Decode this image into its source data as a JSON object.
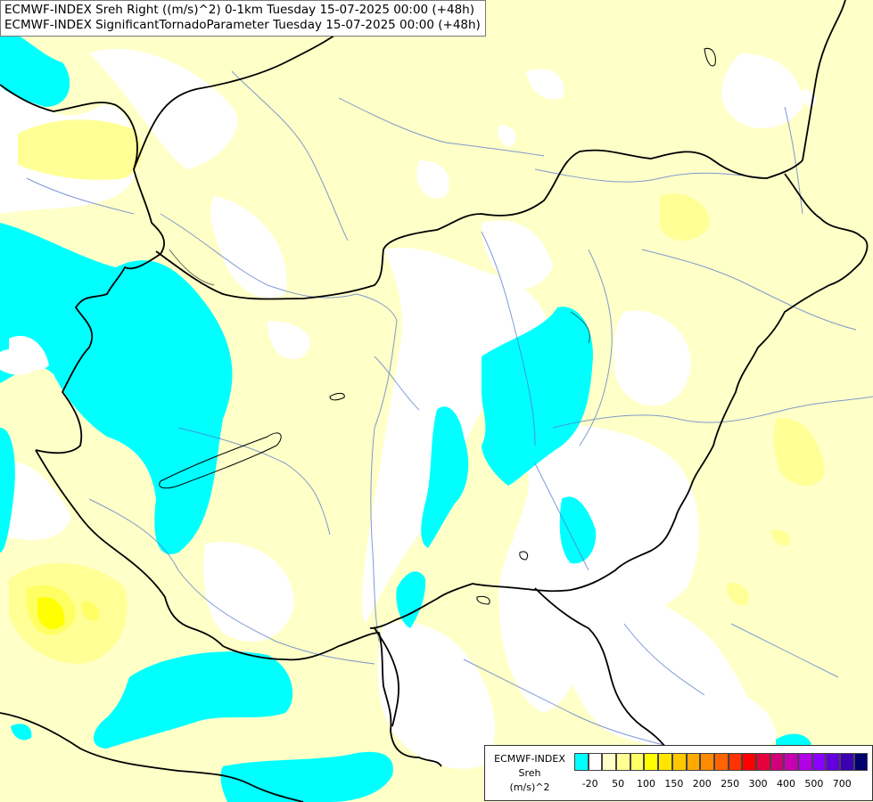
{
  "title": {
    "line1": "ECMWF-INDEX Sreh Right ((m/s)^2) 0-1km Tuesday 15-07-2025 00:00 (+48h)",
    "line2": "ECMWF-INDEX SignificantTornadoParameter Tuesday 15-07-2025 00:00 (+48h)"
  },
  "legend": {
    "title": "ECMWF-INDEX",
    "variable": "Sreh",
    "unit": "(m/s)^2",
    "colors": [
      "#00ffff",
      "#ffffff",
      "#ffffc8",
      "#ffff96",
      "#ffff64",
      "#ffff00",
      "#ffe600",
      "#ffc800",
      "#ffaa00",
      "#ff8c00",
      "#ff6400",
      "#ff3200",
      "#ff0000",
      "#e6003c",
      "#d2007a",
      "#c800b4",
      "#b400e6",
      "#8c00ff",
      "#6400dc",
      "#3c00b4",
      "#00006e"
    ],
    "ticks": [
      "-20",
      "50",
      "100",
      "150",
      "200",
      "250",
      "300",
      "400",
      "500",
      "700"
    ]
  }
}
